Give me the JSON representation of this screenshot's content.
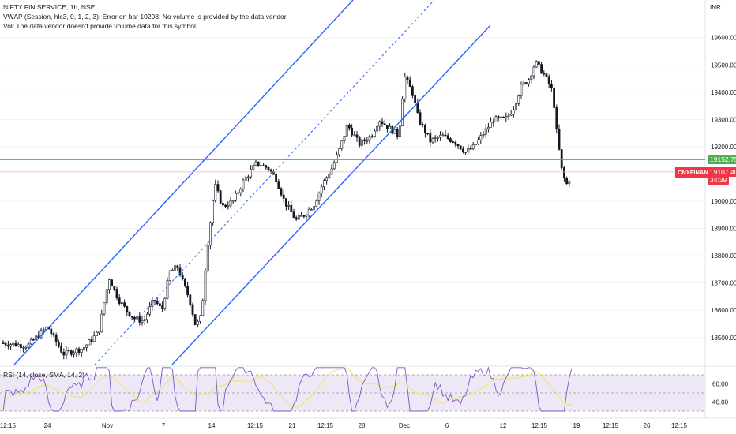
{
  "legend": {
    "symbol_line": "NIFTY FIN SERVICE, 1h, NSE",
    "vwap_line": "VWAP (Session, hlc3, 0, 1, 2, 3): Error on bar 10298: No volume is provided by the data vendor.",
    "vol_line": "Vol: The data vendor doesn't provide volume data for this symbol."
  },
  "currency": "INR",
  "price_axis": {
    "ticks": [
      "19600.00",
      "19500.00",
      "19400.00",
      "19300.00",
      "19200.00",
      "19100.00",
      "19000.00",
      "18900.00",
      "18800.00",
      "18700.00",
      "18600.00",
      "18500.00"
    ],
    "values": [
      19600,
      19500,
      19400,
      19300,
      19200,
      19100,
      19000,
      18900,
      18800,
      18700,
      18600,
      18500
    ]
  },
  "price_tags": {
    "horizontal_level": "19152.75",
    "last_price": "19107.40",
    "countdown": "34:39",
    "symbol_tag": "CNXFINANCE"
  },
  "rsi": {
    "label": "RSI (14, close, SMA, 14, 2)",
    "ticks": [
      "60.00",
      "40.00"
    ]
  },
  "time_axis": {
    "labels": [
      "12:15",
      "24",
      "Nov",
      "7",
      "14",
      "12:15",
      "21",
      "12:15",
      "28",
      "Dec",
      "6",
      "12",
      "12:15",
      "19",
      "12:15",
      "26",
      "12:15"
    ]
  },
  "colors": {
    "up": "#089981",
    "down": "#f23645",
    "candle": "#131722",
    "channel": "#2962ff",
    "level": "#4caf50",
    "rsi_line": "#7e57c2",
    "rsi_ma": "#f0e65a",
    "rsi_band": "#ede7f6"
  },
  "chart_data": {
    "type": "candlestick",
    "horizontal_level": 19152.75,
    "last_price": 19107.4,
    "rsi_levels": [
      70,
      50,
      30
    ]
  }
}
